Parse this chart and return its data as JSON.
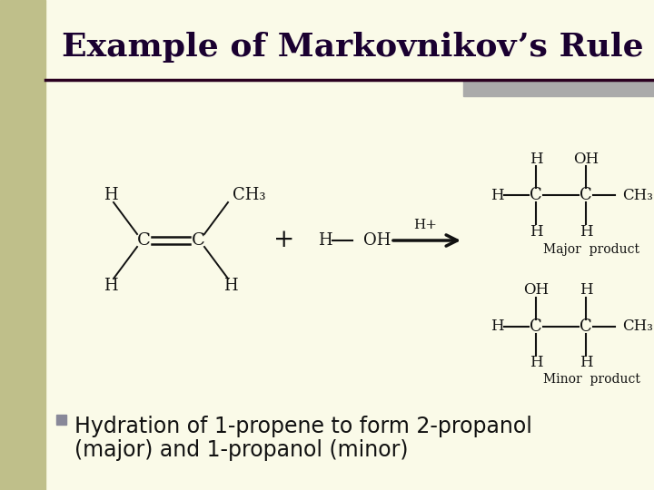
{
  "background_color": "#FAFAE8",
  "sidebar_color": "#BFBF8A",
  "title": "Example of Markovnikov’s Rule",
  "title_color": "#1a0030",
  "title_fontsize": 26,
  "title_font": "serif",
  "separator_color": "#2a0020",
  "bullet_color": "#999999",
  "bullet_text_line1": "Hydration of 1-propene to form 2-propanol",
  "bullet_text_line2": "(major) and 1-propanol (minor)",
  "bullet_fontsize": 17,
  "chem_color": "#111111",
  "chem_fontsize": 13,
  "label_fontsize": 11
}
